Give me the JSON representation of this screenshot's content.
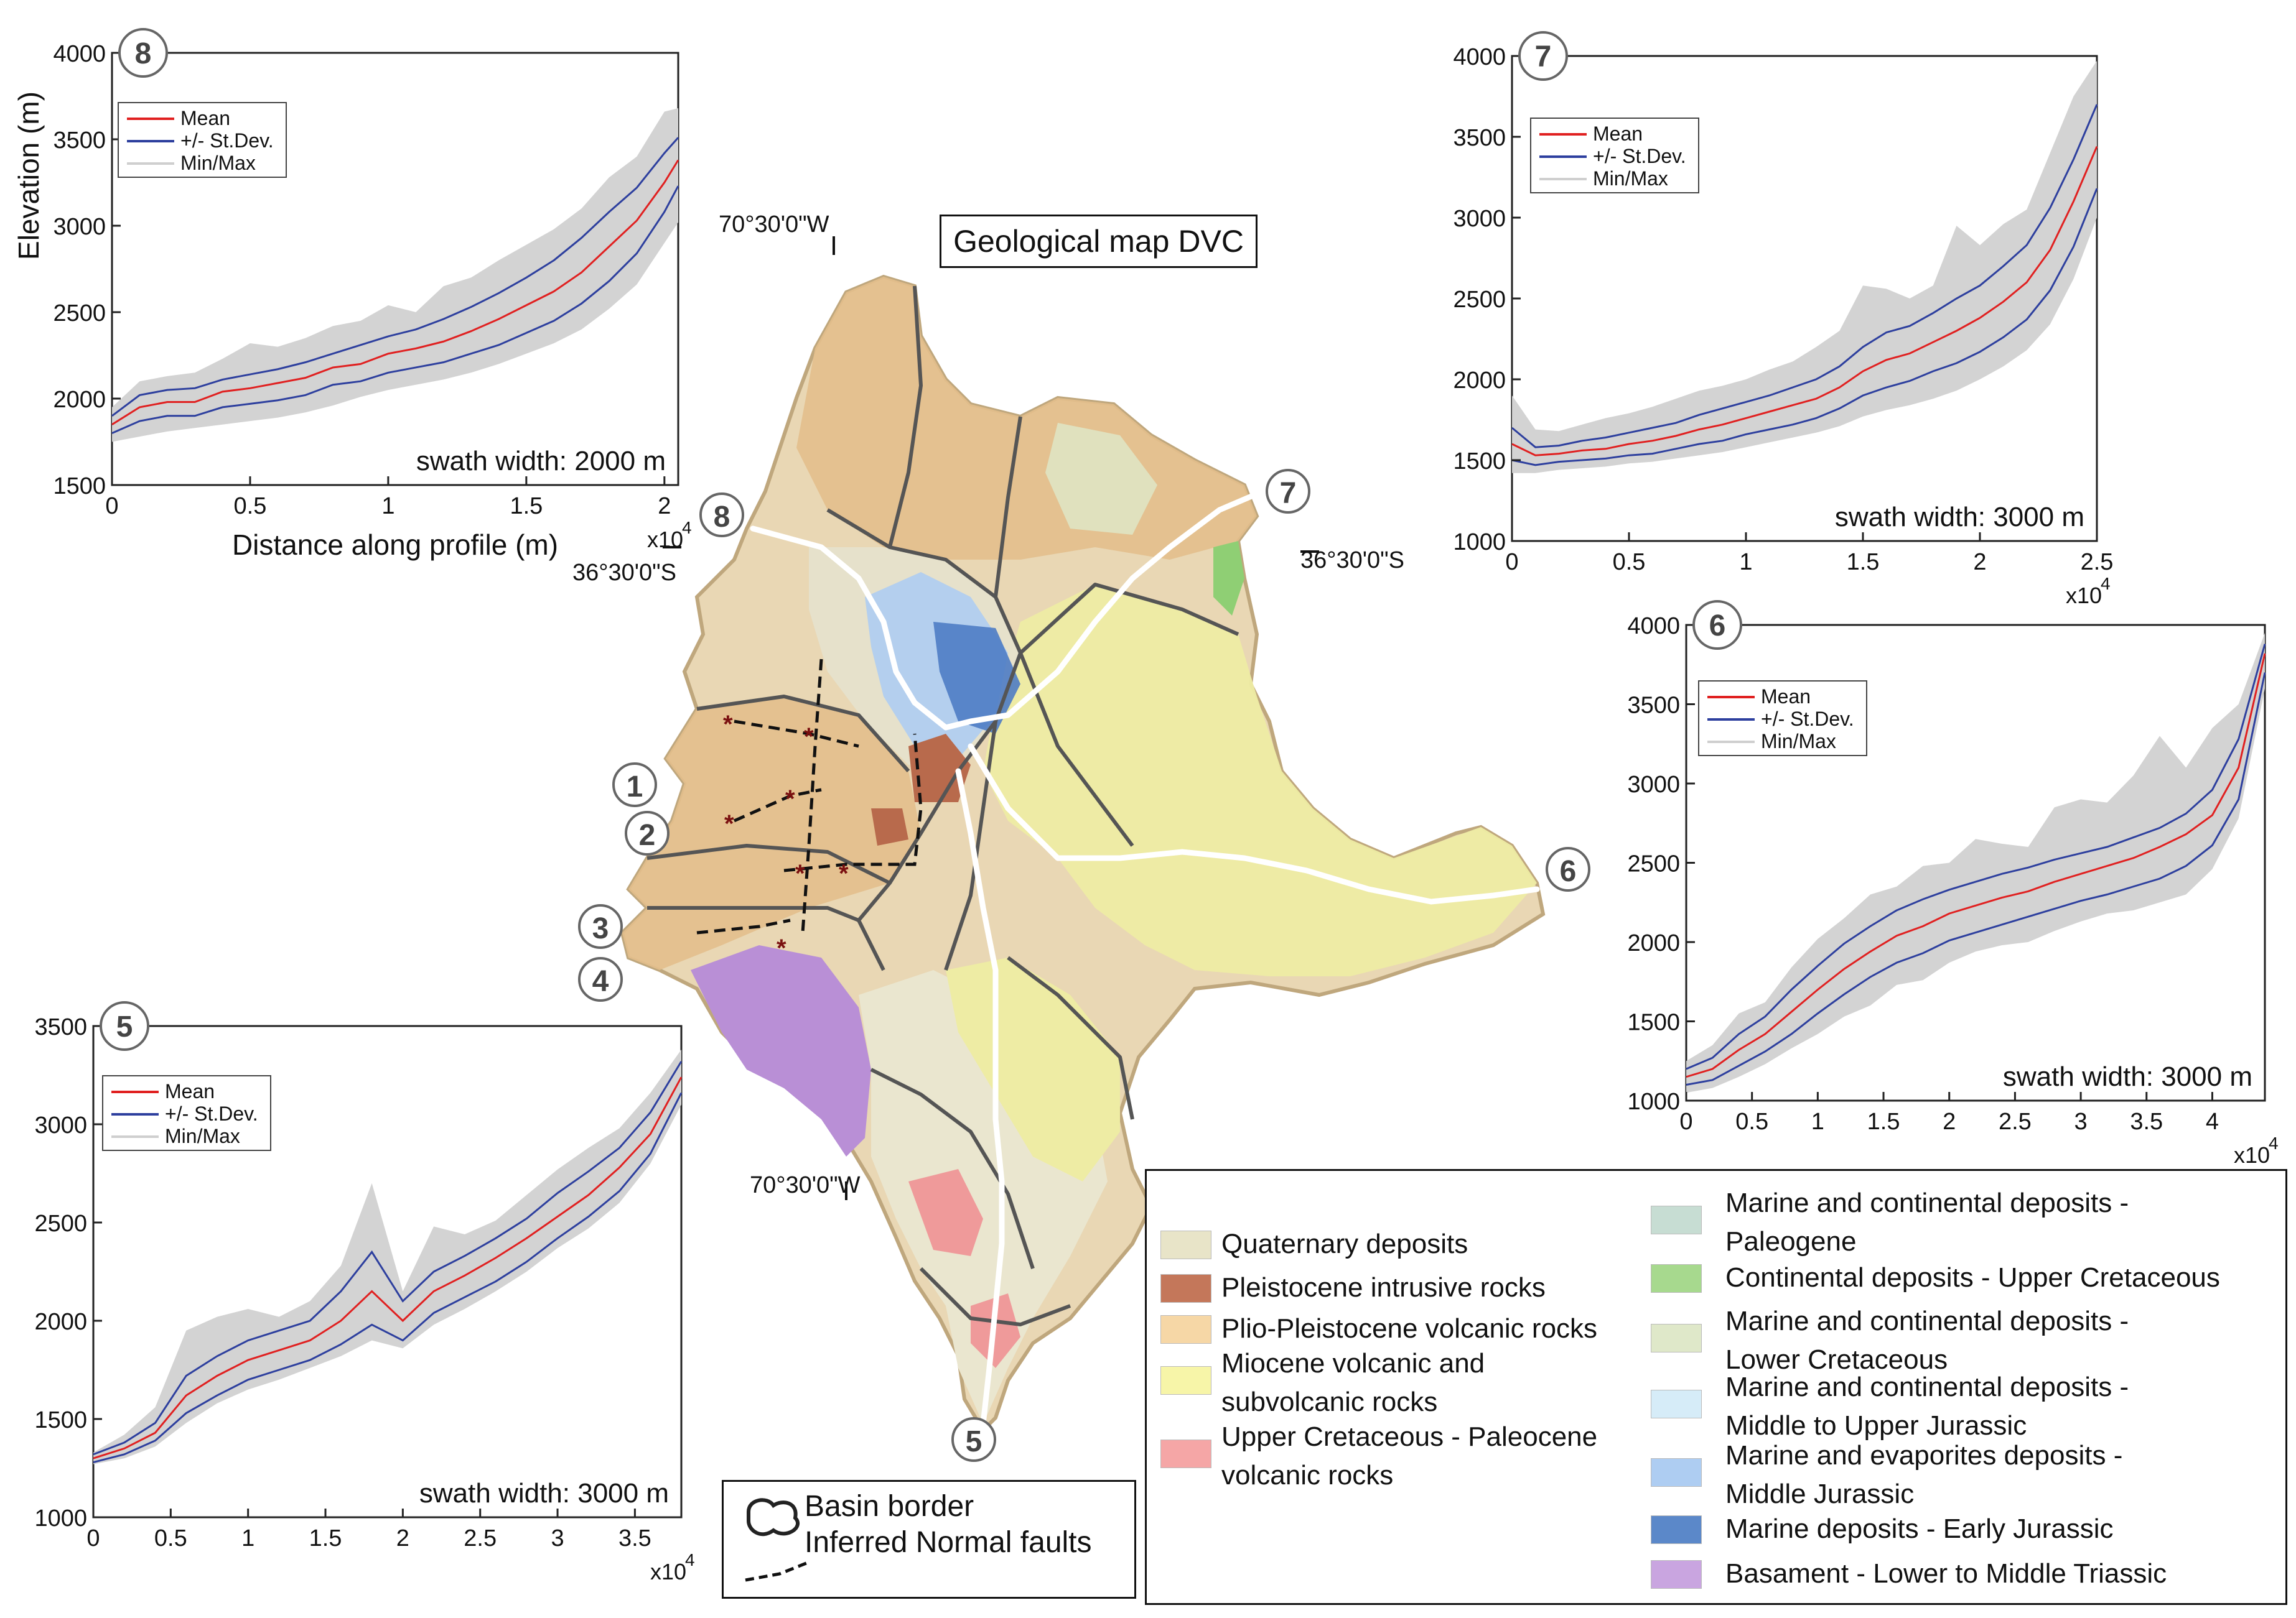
{
  "map_title": "Geological map DVC",
  "coords": {
    "lon_top": "70°30'0\"W",
    "lon_bottom": "70°30'0\"W",
    "lat_left": "36°30'0\"S",
    "lat_right": "36°30'0\"S"
  },
  "profile_markers": [
    "1",
    "2",
    "3",
    "4",
    "5",
    "6",
    "7",
    "8"
  ],
  "map_legend": {
    "items": [
      {
        "label": "Basin border",
        "symbol": "basin-outline"
      },
      {
        "label": "Inferred Normal faults",
        "symbol": "dashed-line"
      }
    ]
  },
  "geology_legend": {
    "col1": [
      {
        "label": "Quaternary deposits",
        "color": "#e8e4c8"
      },
      {
        "label": "Pleistocene intrusive rocks",
        "color": "#c4775a"
      },
      {
        "label": "Plio-Pleistocene volcanic rocks",
        "color": "#f6d7a6"
      },
      {
        "label_1": "Miocene volcanic and",
        "label_2": "subvolcanic rocks",
        "color": "#f7f5a8"
      },
      {
        "label_1": "Upper Cretaceous - Paleocene",
        "label_2": "volcanic rocks",
        "color": "#f5a6a6"
      }
    ],
    "col2": [
      {
        "label_1": "Marine and continental deposits -",
        "label_2": "Paleogene",
        "color": "#c7ddd3"
      },
      {
        "label": "Continental deposits - Upper Cretaceous",
        "color": "#a7d98e"
      },
      {
        "label_1": "Marine and continental deposits -",
        "label_2": "Lower Cretaceous",
        "color": "#dfe8c9"
      },
      {
        "label_1": "Marine and continental deposits -",
        "label_2": "Middle to Upper Jurassic",
        "color": "#d6ecf8"
      },
      {
        "label_1": "Marine and evaporites deposits -",
        "label_2": "Middle Jurassic",
        "color": "#aecdf2"
      },
      {
        "label": "Marine deposits - Early  Jurassic",
        "color": "#5b88c9"
      },
      {
        "label": "Basament - Lower to Middle Triassic",
        "color": "#c9a5e0"
      }
    ]
  },
  "chart_data": [
    {
      "id": "8",
      "type": "line",
      "xlabel": "Distance along profile (m)",
      "ylabel": "Elevation (m)",
      "x_ticks": [
        "0",
        "0.5",
        "1",
        "1.5",
        "2"
      ],
      "x_exp": "x10",
      "y_ticks": [
        "1500",
        "2000",
        "2500",
        "3000",
        "3500",
        "4000"
      ],
      "xlim": [
        0,
        20500
      ],
      "ylim": [
        1500,
        4000
      ],
      "annotation": "swath width: 2000 m",
      "legend": [
        "Mean",
        "+/- St.Dev.",
        "Min/Max"
      ],
      "x": [
        0,
        1000,
        2000,
        3000,
        4000,
        5000,
        6000,
        7000,
        8000,
        9000,
        10000,
        11000,
        12000,
        13000,
        14000,
        15000,
        16000,
        17000,
        18000,
        19000,
        20000,
        20500
      ],
      "mean": [
        1850,
        1950,
        1980,
        1980,
        2040,
        2060,
        2090,
        2120,
        2180,
        2200,
        2260,
        2290,
        2330,
        2390,
        2460,
        2540,
        2620,
        2730,
        2880,
        3030,
        3250,
        3380
      ],
      "std_upper": [
        1900,
        2020,
        2050,
        2060,
        2110,
        2140,
        2170,
        2210,
        2260,
        2310,
        2360,
        2400,
        2460,
        2530,
        2610,
        2700,
        2800,
        2930,
        3080,
        3220,
        3420,
        3510
      ],
      "std_lower": [
        1800,
        1870,
        1900,
        1900,
        1950,
        1970,
        1990,
        2020,
        2080,
        2100,
        2150,
        2180,
        2210,
        2260,
        2310,
        2380,
        2450,
        2550,
        2680,
        2840,
        3080,
        3230
      ],
      "max": [
        1950,
        2100,
        2130,
        2150,
        2230,
        2320,
        2300,
        2350,
        2420,
        2450,
        2540,
        2500,
        2650,
        2700,
        2800,
        2890,
        2980,
        3100,
        3280,
        3400,
        3660,
        3680
      ],
      "min": [
        1750,
        1780,
        1810,
        1830,
        1850,
        1870,
        1890,
        1920,
        1960,
        2010,
        2050,
        2080,
        2110,
        2150,
        2200,
        2260,
        2320,
        2400,
        2520,
        2660,
        2900,
        3020
      ]
    },
    {
      "id": "7",
      "type": "line",
      "x_ticks": [
        "0",
        "0.5",
        "1",
        "1.5",
        "2",
        "2.5"
      ],
      "x_exp": "x10",
      "y_ticks": [
        "1000",
        "1500",
        "2000",
        "2500",
        "3000",
        "3500",
        "4000"
      ],
      "xlim": [
        0,
        25000
      ],
      "ylim": [
        1000,
        4000
      ],
      "annotation": "swath width: 3000 m",
      "legend": [
        "Mean",
        "+/- St.Dev.",
        "Min/Max"
      ],
      "x": [
        0,
        1000,
        2000,
        3000,
        4000,
        5000,
        6000,
        7000,
        8000,
        9000,
        10000,
        11000,
        12000,
        13000,
        14000,
        15000,
        16000,
        17000,
        18000,
        19000,
        20000,
        21000,
        22000,
        23000,
        24000,
        25000
      ],
      "mean": [
        1600,
        1530,
        1540,
        1560,
        1570,
        1600,
        1620,
        1650,
        1690,
        1720,
        1760,
        1800,
        1840,
        1880,
        1950,
        2050,
        2120,
        2160,
        2230,
        2300,
        2380,
        2480,
        2600,
        2800,
        3100,
        3440
      ],
      "std_upper": [
        1700,
        1580,
        1590,
        1620,
        1640,
        1670,
        1700,
        1730,
        1780,
        1820,
        1860,
        1900,
        1950,
        2000,
        2080,
        2200,
        2290,
        2330,
        2410,
        2500,
        2580,
        2700,
        2830,
        3060,
        3360,
        3700
      ],
      "std_lower": [
        1500,
        1470,
        1490,
        1500,
        1510,
        1530,
        1540,
        1570,
        1600,
        1620,
        1660,
        1690,
        1720,
        1760,
        1820,
        1900,
        1950,
        1990,
        2050,
        2100,
        2170,
        2260,
        2370,
        2550,
        2820,
        3180
      ],
      "max": [
        1900,
        1690,
        1680,
        1720,
        1760,
        1790,
        1830,
        1880,
        1930,
        1960,
        2000,
        2060,
        2110,
        2200,
        2300,
        2580,
        2560,
        2500,
        2580,
        2950,
        2830,
        2960,
        3050,
        3400,
        3750,
        3970
      ],
      "min": [
        1420,
        1420,
        1440,
        1450,
        1460,
        1480,
        1490,
        1510,
        1530,
        1550,
        1580,
        1610,
        1640,
        1670,
        1710,
        1770,
        1810,
        1840,
        1880,
        1930,
        2000,
        2080,
        2180,
        2340,
        2620,
        3000
      ]
    },
    {
      "id": "6",
      "type": "line",
      "x_ticks": [
        "0",
        "0.5",
        "1",
        "1.5",
        "2",
        "2.5",
        "3",
        "3.5",
        "4"
      ],
      "x_exp": "x10",
      "y_ticks": [
        "1000",
        "1500",
        "2000",
        "2500",
        "3000",
        "3500",
        "4000"
      ],
      "xlim": [
        0,
        44000
      ],
      "ylim": [
        1000,
        4000
      ],
      "annotation": "swath width: 3000 m",
      "legend": [
        "Mean",
        "+/- St.Dev.",
        "Min/Max"
      ],
      "x": [
        0,
        2000,
        4000,
        6000,
        8000,
        10000,
        12000,
        14000,
        16000,
        18000,
        20000,
        22000,
        24000,
        26000,
        28000,
        30000,
        32000,
        34000,
        36000,
        38000,
        40000,
        42000,
        44000
      ],
      "mean": [
        1150,
        1200,
        1320,
        1420,
        1560,
        1700,
        1830,
        1940,
        2040,
        2100,
        2180,
        2230,
        2280,
        2320,
        2380,
        2430,
        2480,
        2530,
        2600,
        2680,
        2800,
        3100,
        3820
      ],
      "std_upper": [
        1200,
        1270,
        1420,
        1530,
        1700,
        1850,
        1990,
        2100,
        2200,
        2270,
        2330,
        2380,
        2430,
        2470,
        2520,
        2560,
        2600,
        2660,
        2720,
        2810,
        2960,
        3280,
        3880
      ],
      "std_lower": [
        1100,
        1130,
        1220,
        1310,
        1420,
        1550,
        1670,
        1780,
        1870,
        1930,
        2010,
        2060,
        2110,
        2160,
        2210,
        2260,
        2300,
        2350,
        2400,
        2480,
        2610,
        2900,
        3700
      ],
      "max": [
        1250,
        1350,
        1550,
        1620,
        1840,
        2020,
        2150,
        2300,
        2350,
        2480,
        2500,
        2650,
        2620,
        2600,
        2850,
        2900,
        2880,
        3050,
        3300,
        3100,
        3350,
        3500,
        3950
      ],
      "min": [
        1050,
        1080,
        1150,
        1230,
        1330,
        1420,
        1530,
        1600,
        1730,
        1760,
        1870,
        1940,
        1980,
        2000,
        2070,
        2130,
        2180,
        2200,
        2250,
        2300,
        2460,
        2780,
        3600
      ]
    },
    {
      "id": "5",
      "type": "line",
      "x_ticks": [
        "0",
        "0.5",
        "1",
        "1.5",
        "2",
        "2.5",
        "3",
        "3.5"
      ],
      "x_exp": "x10",
      "y_ticks": [
        "1000",
        "1500",
        "2000",
        "2500",
        "3000",
        "3500"
      ],
      "xlim": [
        0,
        38000
      ],
      "ylim": [
        1000,
        3500
      ],
      "annotation": "swath width: 3000 m",
      "legend": [
        "Mean",
        "+/- St.Dev.",
        "Min/Max"
      ],
      "x": [
        0,
        2000,
        4000,
        6000,
        8000,
        10000,
        12000,
        14000,
        16000,
        18000,
        20000,
        22000,
        24000,
        26000,
        28000,
        30000,
        32000,
        34000,
        36000,
        38000
      ],
      "mean": [
        1300,
        1350,
        1430,
        1620,
        1720,
        1800,
        1850,
        1900,
        2000,
        2150,
        2000,
        2150,
        2230,
        2320,
        2420,
        2530,
        2640,
        2780,
        2950,
        3240
      ],
      "std_upper": [
        1320,
        1380,
        1480,
        1720,
        1820,
        1900,
        1950,
        2000,
        2150,
        2350,
        2100,
        2250,
        2330,
        2420,
        2520,
        2650,
        2760,
        2880,
        3060,
        3320
      ],
      "std_lower": [
        1280,
        1320,
        1390,
        1530,
        1620,
        1700,
        1750,
        1800,
        1880,
        1980,
        1900,
        2040,
        2120,
        2200,
        2300,
        2420,
        2530,
        2660,
        2850,
        3160
      ],
      "max": [
        1330,
        1420,
        1560,
        1950,
        2020,
        2060,
        2020,
        2100,
        2280,
        2700,
        2150,
        2480,
        2440,
        2510,
        2640,
        2770,
        2880,
        2980,
        3160,
        3380
      ],
      "min": [
        1270,
        1300,
        1360,
        1480,
        1580,
        1650,
        1700,
        1760,
        1820,
        1900,
        1860,
        1980,
        2060,
        2150,
        2250,
        2370,
        2470,
        2600,
        2800,
        3100
      ]
    }
  ]
}
